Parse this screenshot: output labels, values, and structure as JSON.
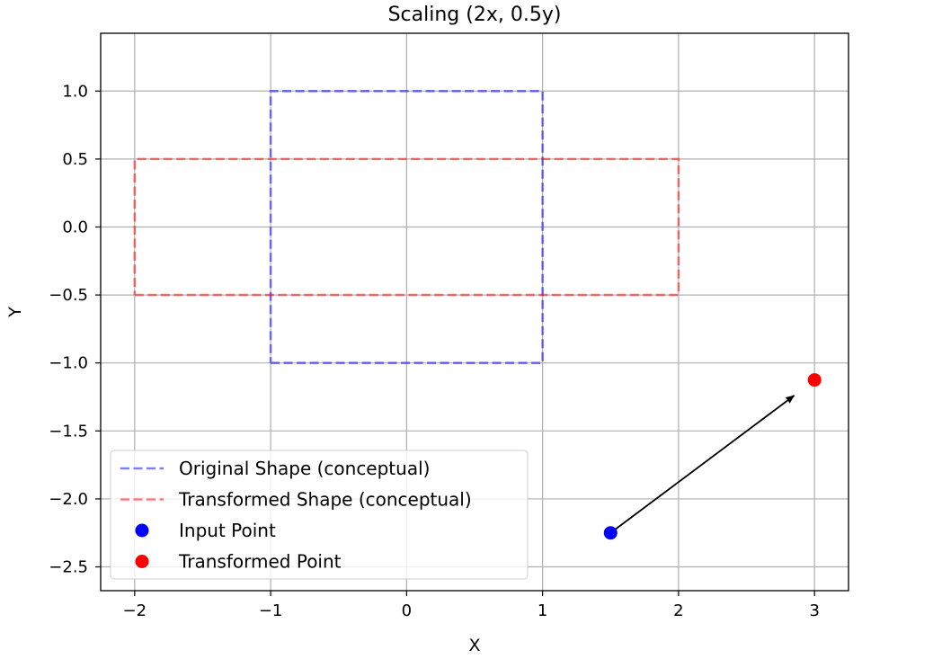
{
  "chart_data": {
    "type": "line",
    "title": "Scaling (2x, 0.5y)",
    "xlabel": "X",
    "ylabel": "Y",
    "xlim": [
      -2.25,
      3.25
    ],
    "ylim": [
      -2.675,
      1.425
    ],
    "xticks": [
      -2,
      -1,
      0,
      1,
      2,
      3
    ],
    "xtick_labels": [
      "−2",
      "−1",
      "0",
      "1",
      "2",
      "3"
    ],
    "yticks": [
      1.0,
      0.5,
      0.0,
      -0.5,
      -1.0,
      -1.5,
      -2.0,
      -2.5
    ],
    "ytick_labels": [
      "1.0",
      "0.5",
      "0.0",
      "−0.5",
      "−1.0",
      "−1.5",
      "−2.0",
      "−2.5"
    ],
    "grid": true,
    "legend_position": "lower-left",
    "series": [
      {
        "name": "Original Shape (conceptual)",
        "kind": "dashed-line",
        "color": "#0000ff",
        "opacity": 0.5,
        "x": [
          -1,
          1,
          1,
          -1,
          -1
        ],
        "y": [
          -1,
          -1,
          1,
          1,
          -1
        ]
      },
      {
        "name": "Transformed Shape (conceptual)",
        "kind": "dashed-line",
        "color": "#ff0000",
        "opacity": 0.5,
        "x": [
          -2,
          2,
          2,
          -2,
          -2
        ],
        "y": [
          -0.5,
          -0.5,
          0.5,
          0.5,
          -0.5
        ]
      },
      {
        "name": "Input Point",
        "kind": "point",
        "color": "#0000ff",
        "x": [
          1.5
        ],
        "y": [
          -2.25
        ]
      },
      {
        "name": "Transformed Point",
        "kind": "point",
        "color": "#ff0000",
        "x": [
          3.0
        ],
        "y": [
          -1.125
        ]
      }
    ],
    "annotations": [
      {
        "type": "arrow",
        "from": [
          1.5,
          -2.25
        ],
        "to": [
          2.85,
          -1.24
        ],
        "color": "#000000"
      }
    ]
  }
}
